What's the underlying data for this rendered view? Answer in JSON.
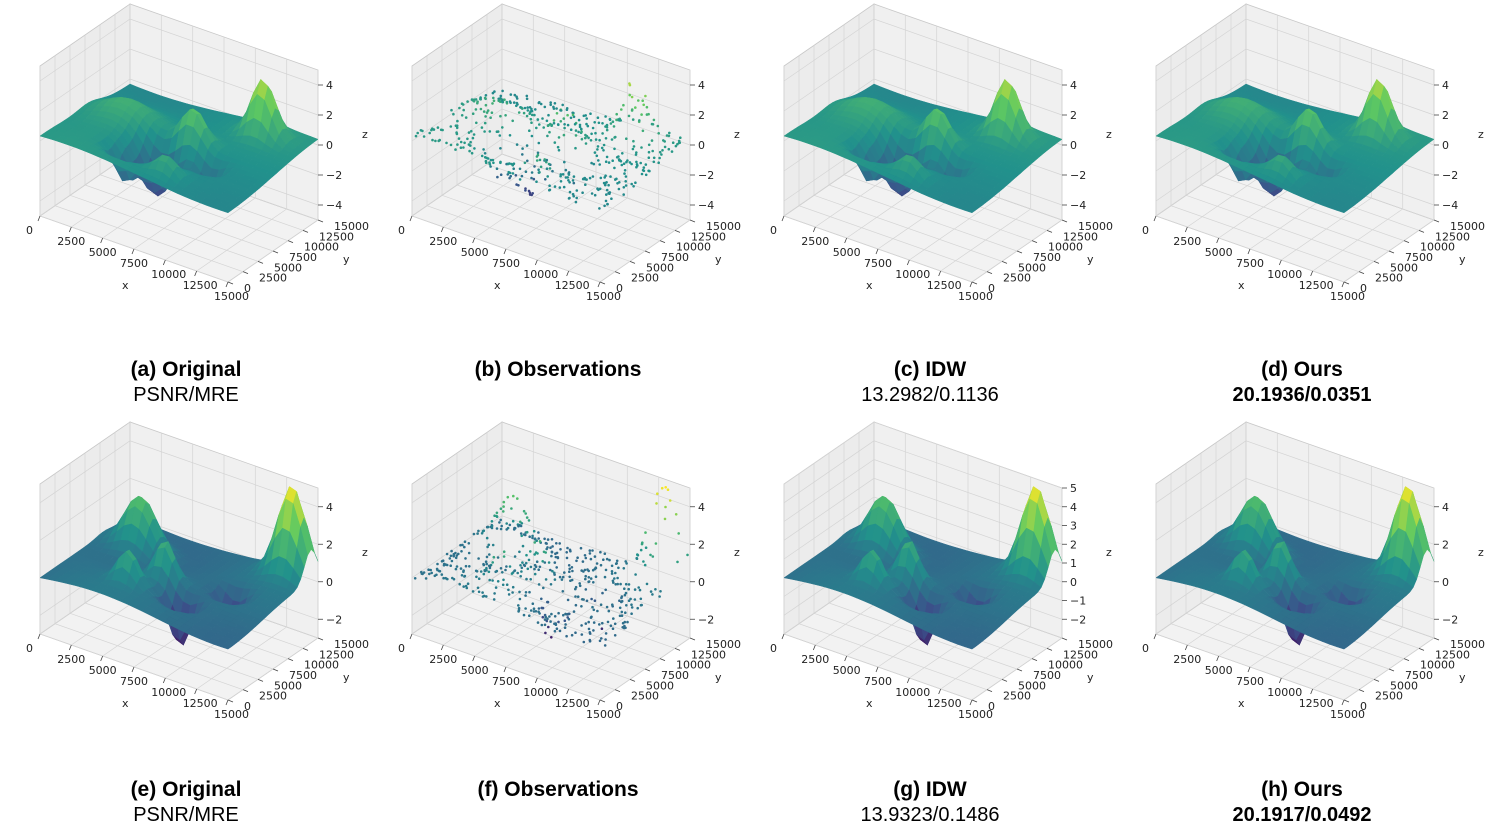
{
  "chart_data": [
    {
      "type": "surface",
      "id": "a",
      "caption_title": "(a) Original",
      "caption_metric": "PSNR/MRE",
      "metric_bold": false,
      "render": "surface",
      "xlabel": "x",
      "ylabel": "y",
      "zlabel": "z",
      "xlim": [
        0,
        15000
      ],
      "ylim": [
        0,
        15000
      ],
      "zlim": [
        -5,
        5
      ],
      "xticks": [
        "0",
        "2500",
        "5000",
        "7500",
        "10000",
        "12500",
        "15000"
      ],
      "yticks": [
        "0",
        "2500",
        "5000",
        "7500",
        "10000",
        "12500",
        "15000"
      ],
      "zticks": [
        "−4",
        "−2",
        "0",
        "2",
        "4"
      ],
      "colormap": "viridis",
      "grid": true,
      "seed": 1
    },
    {
      "type": "scatter",
      "id": "b",
      "caption_title": "(b) Observations",
      "caption_metric": "",
      "metric_bold": false,
      "render": "scatter",
      "xlabel": "x",
      "ylabel": "y",
      "zlabel": "z",
      "xlim": [
        0,
        15000
      ],
      "ylim": [
        0,
        15000
      ],
      "zlim": [
        -5,
        5
      ],
      "xticks": [
        "0",
        "2500",
        "5000",
        "7500",
        "10000",
        "12500",
        "15000"
      ],
      "yticks": [
        "0",
        "2500",
        "5000",
        "7500",
        "10000",
        "12500",
        "15000"
      ],
      "zticks": [
        "−4",
        "−2",
        "0",
        "2",
        "4"
      ],
      "colormap": "viridis",
      "grid": true,
      "seed": 1
    },
    {
      "type": "surface",
      "id": "c",
      "caption_title": "(c) IDW",
      "caption_metric": "13.2982/0.1136",
      "metric_bold": false,
      "render": "surface",
      "xlabel": "x",
      "ylabel": "y",
      "zlabel": "z",
      "xlim": [
        0,
        15000
      ],
      "ylim": [
        0,
        15000
      ],
      "zlim": [
        -5,
        5
      ],
      "xticks": [
        "0",
        "2500",
        "5000",
        "7500",
        "10000",
        "12500",
        "15000"
      ],
      "yticks": [
        "0",
        "2500",
        "5000",
        "7500",
        "10000",
        "12500",
        "15000"
      ],
      "zticks": [
        "−4",
        "−2",
        "0",
        "2",
        "4"
      ],
      "colormap": "viridis",
      "grid": true,
      "seed": 1
    },
    {
      "type": "surface",
      "id": "d",
      "caption_title": "(d) Ours",
      "caption_metric": "20.1936/0.0351",
      "metric_bold": true,
      "render": "surface",
      "xlabel": "x",
      "ylabel": "y",
      "zlabel": "z",
      "xlim": [
        0,
        15000
      ],
      "ylim": [
        0,
        15000
      ],
      "zlim": [
        -5,
        5
      ],
      "xticks": [
        "0",
        "2500",
        "5000",
        "7500",
        "10000",
        "12500",
        "15000"
      ],
      "yticks": [
        "0",
        "2500",
        "5000",
        "7500",
        "10000",
        "12500",
        "15000"
      ],
      "zticks": [
        "−4",
        "−2",
        "0",
        "2",
        "4"
      ],
      "colormap": "viridis",
      "grid": true,
      "seed": 1
    },
    {
      "type": "surface",
      "id": "e",
      "caption_title": "(e) Original",
      "caption_metric": "PSNR/MRE",
      "metric_bold": false,
      "render": "surface",
      "xlabel": "x",
      "ylabel": "y",
      "zlabel": "z",
      "xlim": [
        0,
        15000
      ],
      "ylim": [
        0,
        15000
      ],
      "zlim": [
        -3,
        5
      ],
      "xticks": [
        "0",
        "2500",
        "5000",
        "7500",
        "10000",
        "12500",
        "15000"
      ],
      "yticks": [
        "0",
        "2500",
        "5000",
        "7500",
        "10000",
        "12500",
        "15000"
      ],
      "zticks": [
        "−2",
        "0",
        "2",
        "4"
      ],
      "colormap": "viridis",
      "grid": true,
      "seed": 2
    },
    {
      "type": "scatter",
      "id": "f",
      "caption_title": "(f) Observations",
      "caption_metric": "",
      "metric_bold": false,
      "render": "scatter",
      "xlabel": "x",
      "ylabel": "y",
      "zlabel": "z",
      "xlim": [
        0,
        15000
      ],
      "ylim": [
        0,
        15000
      ],
      "zlim": [
        -3,
        5
      ],
      "xticks": [
        "0",
        "2500",
        "5000",
        "7500",
        "10000",
        "12500",
        "15000"
      ],
      "yticks": [
        "0",
        "2500",
        "5000",
        "7500",
        "10000",
        "12500",
        "15000"
      ],
      "zticks": [
        "−2",
        "0",
        "2",
        "4"
      ],
      "colormap": "viridis",
      "grid": true,
      "seed": 2
    },
    {
      "type": "surface",
      "id": "g",
      "caption_title": "(g) IDW",
      "caption_metric": "13.9323/0.1486",
      "metric_bold": false,
      "render": "surface",
      "xlabel": "x",
      "ylabel": "y",
      "zlabel": "z",
      "xlim": [
        0,
        15000
      ],
      "ylim": [
        0,
        15000
      ],
      "zlim": [
        -3,
        5
      ],
      "xticks": [
        "0",
        "2500",
        "5000",
        "7500",
        "10000",
        "12500",
        "15000"
      ],
      "yticks": [
        "0",
        "2500",
        "5000",
        "7500",
        "10000",
        "12500",
        "15000"
      ],
      "zticks": [
        "−2",
        "−1",
        "0",
        "1",
        "2",
        "3",
        "4",
        "5"
      ],
      "colormap": "viridis",
      "grid": true,
      "seed": 2
    },
    {
      "type": "surface",
      "id": "h",
      "caption_title": "(h) Ours",
      "caption_metric": "20.1917/0.0492",
      "metric_bold": true,
      "render": "surface",
      "xlabel": "x",
      "ylabel": "y",
      "zlabel": "z",
      "xlim": [
        0,
        15000
      ],
      "ylim": [
        0,
        15000
      ],
      "zlim": [
        -3,
        5
      ],
      "xticks": [
        "0",
        "2500",
        "5000",
        "7500",
        "10000",
        "12500",
        "15000"
      ],
      "yticks": [
        "0",
        "2500",
        "5000",
        "7500",
        "10000",
        "12500",
        "15000"
      ],
      "zticks": [
        "−2",
        "0",
        "2",
        "4"
      ],
      "colormap": "viridis",
      "grid": true,
      "seed": 2
    }
  ]
}
